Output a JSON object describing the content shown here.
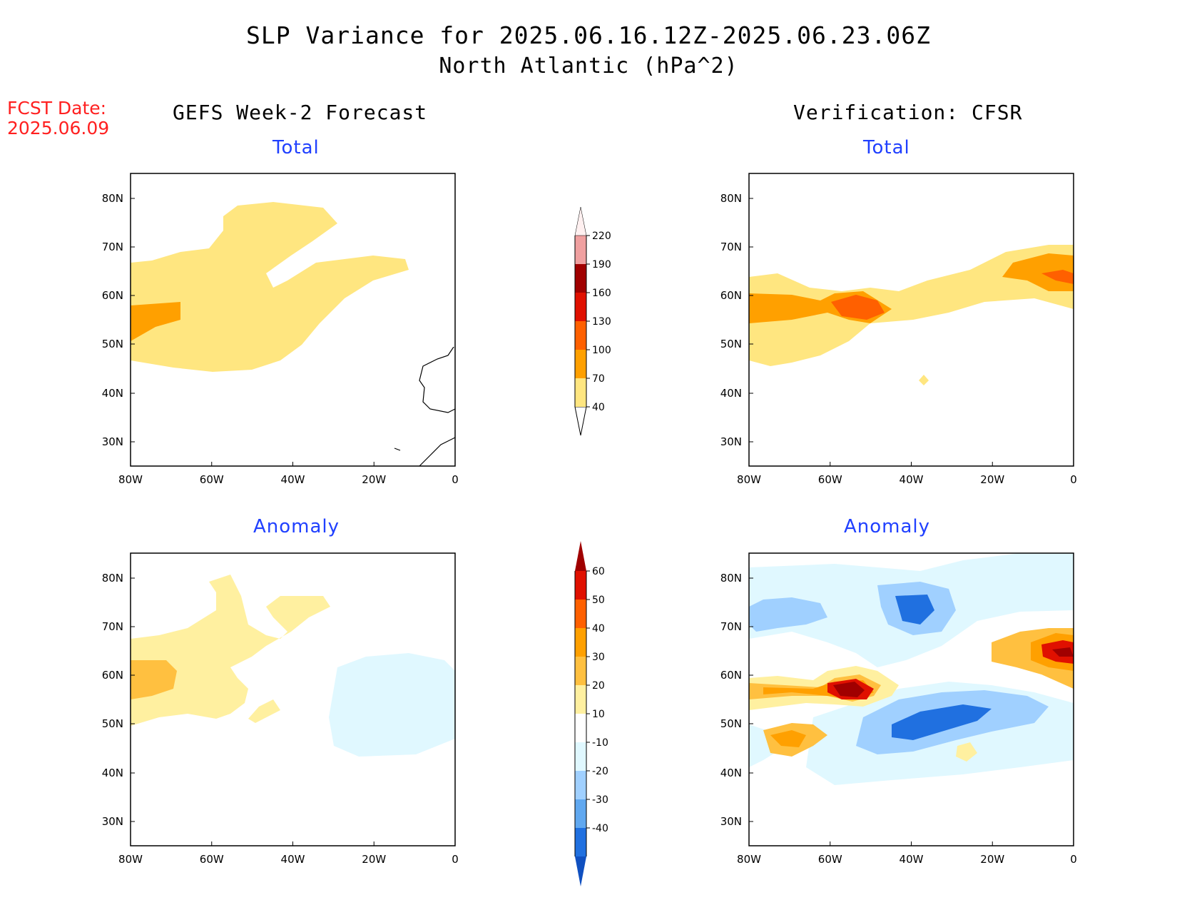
{
  "title_line1": "SLP Variance for 2025.06.16.12Z-2025.06.23.06Z",
  "title_line2": "North Atlantic (hPa^2)",
  "fcst_date_label": "FCST Date:",
  "fcst_date_value": "2025.06.09",
  "columns": {
    "left_title": "GEFS Week-2 Forecast",
    "right_title": "Verification: CFSR"
  },
  "panel_titles": {
    "top_left": "Total",
    "top_right": "Total",
    "bottom_left": "Anomaly",
    "bottom_right": "Anomaly"
  },
  "lat_ticks": [
    "80N",
    "70N",
    "60N",
    "50N",
    "40N",
    "30N"
  ],
  "lon_ticks": [
    "80W",
    "60W",
    "40W",
    "20W",
    "0"
  ],
  "total_colorbar": {
    "labels": [
      "40",
      "70",
      "100",
      "130",
      "160",
      "190",
      "220"
    ],
    "colors": [
      "#ffe680",
      "#ffa000",
      "#ff6000",
      "#e01000",
      "#a00000",
      "#f0a0a0",
      "#fff0f0"
    ]
  },
  "anomaly_colorbar": {
    "labels": [
      "60",
      "50",
      "40",
      "30",
      "20",
      "10",
      "-10",
      "-20",
      "-30",
      "-40"
    ],
    "colors": [
      "#a00000",
      "#e01000",
      "#ff6000",
      "#ffa000",
      "#ffc040",
      "#fff0a0",
      "#ffffff",
      "#e0f8ff",
      "#a0d0ff",
      "#60a8f0",
      "#2070e0",
      "#1050c0"
    ]
  },
  "legend_colors": {
    "coast": "#000000",
    "title": "#000000",
    "panel_title": "#2040ff",
    "fcst": "#ff2020"
  }
}
